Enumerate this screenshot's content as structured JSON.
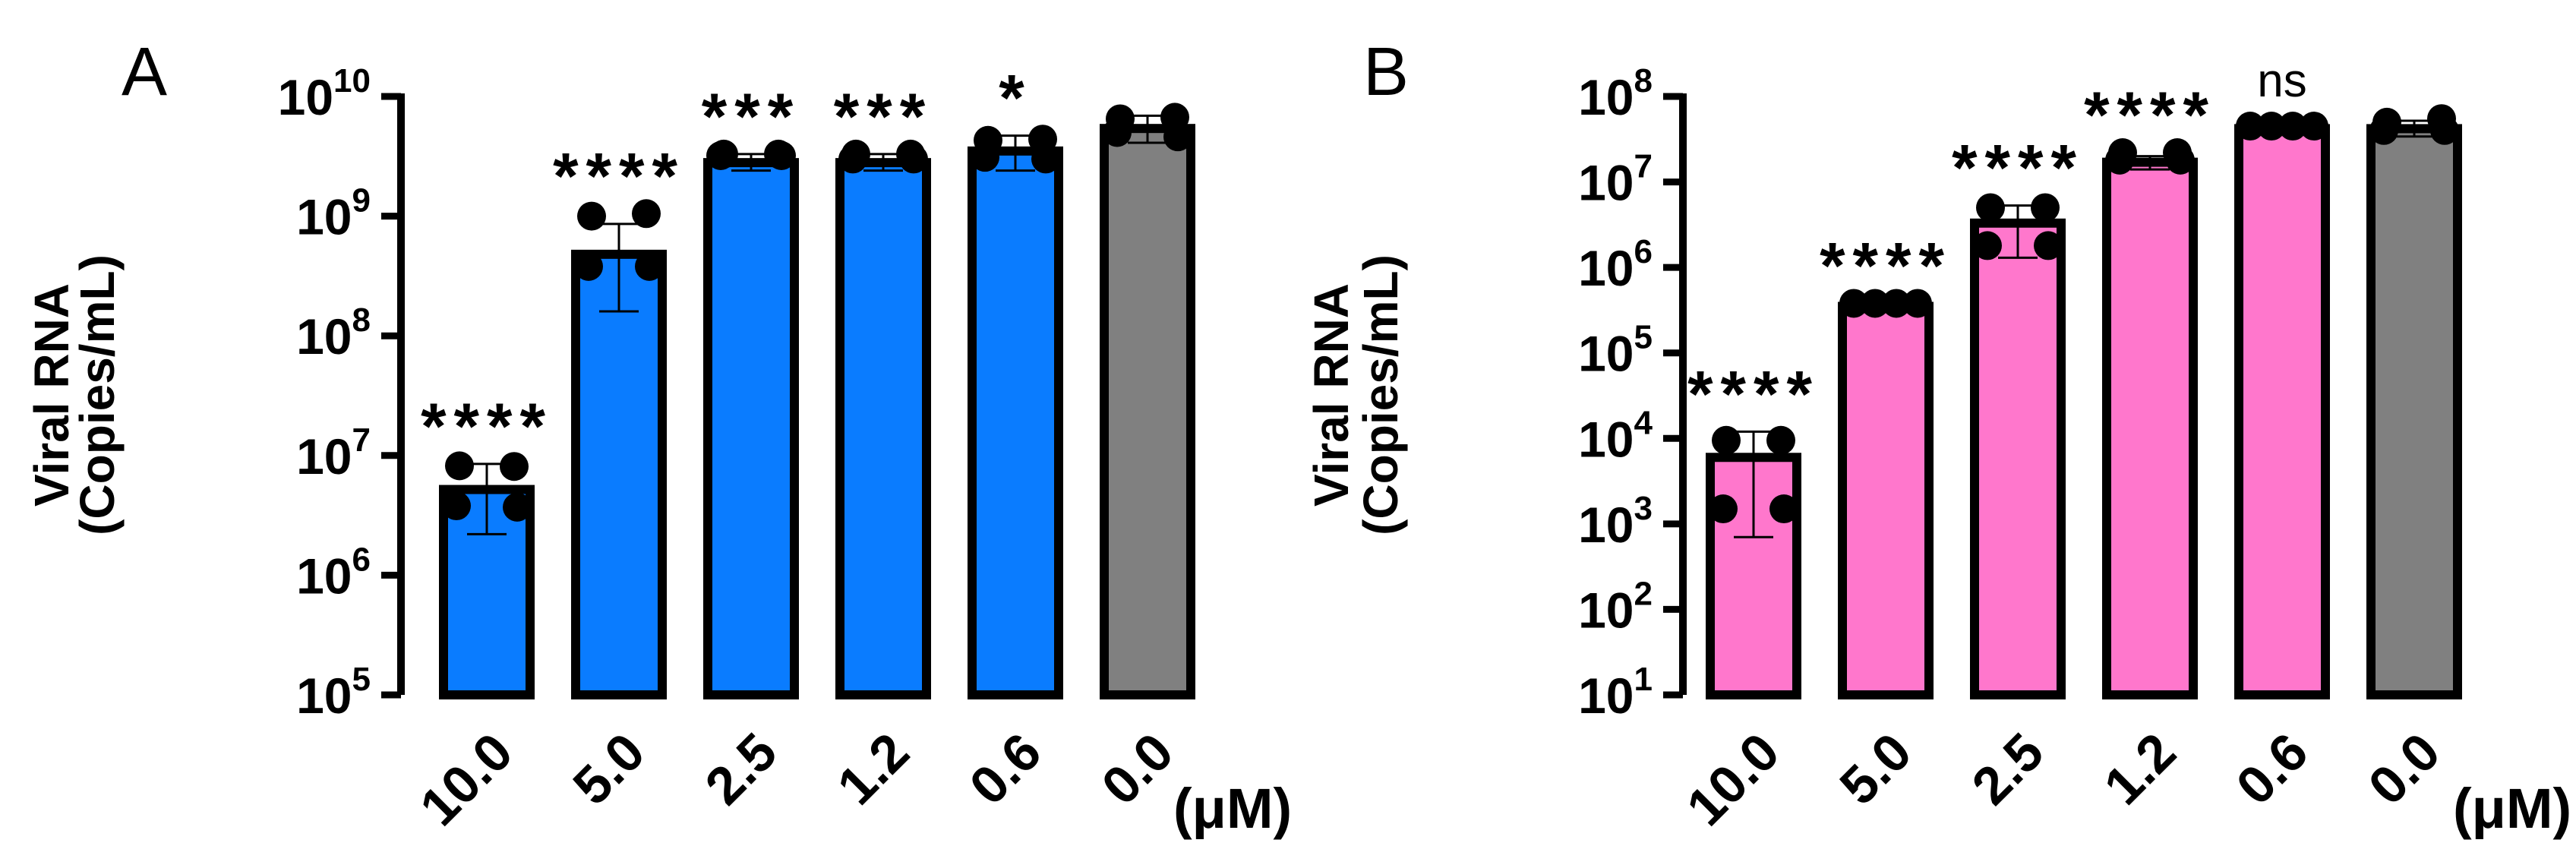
{
  "chart_data": [
    {
      "type": "bar",
      "panel_label": "A",
      "scale": "log10",
      "ylabel_line1": "Viral RNA",
      "ylabel_line2": "(Copies/mL)",
      "unit_label": "(μM)",
      "ylim": [
        100000,
        10000000000
      ],
      "yticks": [
        {
          "value": 100000,
          "base": "10",
          "exp": "5"
        },
        {
          "value": 1000000,
          "base": "10",
          "exp": "6"
        },
        {
          "value": 10000000,
          "base": "10",
          "exp": "7"
        },
        {
          "value": 100000000,
          "base": "10",
          "exp": "8"
        },
        {
          "value": 1000000000,
          "base": "10",
          "exp": "9"
        },
        {
          "value": 10000000000,
          "base": "10",
          "exp": "10"
        }
      ],
      "categories": [
        "10.0",
        "5.0",
        "2.5",
        "1.2",
        "0.6",
        "0.0"
      ],
      "bar_colors": [
        "#0a7cff",
        "#0a7cff",
        "#0a7cff",
        "#0a7cff",
        "#0a7cff",
        "#808080"
      ],
      "values": [
        5200000,
        480000000,
        2800000000,
        2800000000,
        3500000000,
        5400000000
      ],
      "error_low": [
        2200000,
        160000000,
        2400000000,
        2400000000,
        2400000000,
        4100000000
      ],
      "error_high": [
        8500000,
        860000000,
        3300000000,
        3300000000,
        4700000000,
        6900000000
      ],
      "points": [
        [
          8200000,
          8100000,
          3800000,
          3700000
        ],
        [
          1000000000,
          1050000000,
          380000000,
          380000000
        ],
        [
          3300000000,
          3300000000,
          3200000000,
          3200000000
        ],
        [
          3300000000,
          3300000000,
          3000000000,
          3000000000
        ],
        [
          4300000000,
          4400000000,
          3100000000,
          3000000000
        ],
        [
          6500000000,
          6700000000,
          5000000000,
          4600000000
        ]
      ],
      "significance": [
        "****",
        "****",
        "***",
        "***",
        "*",
        ""
      ]
    },
    {
      "type": "bar",
      "panel_label": "B",
      "scale": "log10",
      "ylabel_line1": "Viral RNA",
      "ylabel_line2": "(Copies/mL)",
      "unit_label": "(μM)",
      "ylim": [
        10,
        100000000
      ],
      "yticks": [
        {
          "value": 10,
          "base": "10",
          "exp": "1"
        },
        {
          "value": 100,
          "base": "10",
          "exp": "2"
        },
        {
          "value": 1000,
          "base": "10",
          "exp": "3"
        },
        {
          "value": 10000,
          "base": "10",
          "exp": "4"
        },
        {
          "value": 100000,
          "base": "10",
          "exp": "5"
        },
        {
          "value": 1000000,
          "base": "10",
          "exp": "6"
        },
        {
          "value": 10000000,
          "base": "10",
          "exp": "7"
        },
        {
          "value": 100000000,
          "base": "10",
          "exp": "8"
        }
      ],
      "categories": [
        "10.0",
        "5.0",
        "2.5",
        "1.2",
        "0.6",
        "0.0"
      ],
      "bar_colors": [
        "#ff77cc",
        "#ff77cc",
        "#ff77cc",
        "#ff77cc",
        "#ff77cc",
        "#808080"
      ],
      "values": [
        6000,
        350000,
        3300000,
        17000000,
        42000000,
        42000000
      ],
      "error_low": [
        700,
        300000,
        1300000,
        14000000,
        38000000,
        34000000
      ],
      "error_high": [
        12000,
        380000,
        5300000,
        20000000,
        46000000,
        52000000
      ],
      "points": [
        [
          9500,
          9500,
          1500,
          1500
        ],
        [
          380000,
          380000,
          380000,
          380000
        ],
        [
          5000000,
          5000000,
          1800000,
          1800000
        ],
        [
          22000000,
          22000000,
          18000000,
          18000000
        ],
        [
          45000000,
          45000000,
          45000000,
          45000000
        ],
        [
          50000000,
          55000000,
          40000000,
          40000000
        ]
      ],
      "significance": [
        "****",
        "****",
        "****",
        "****",
        "ns",
        ""
      ]
    }
  ]
}
